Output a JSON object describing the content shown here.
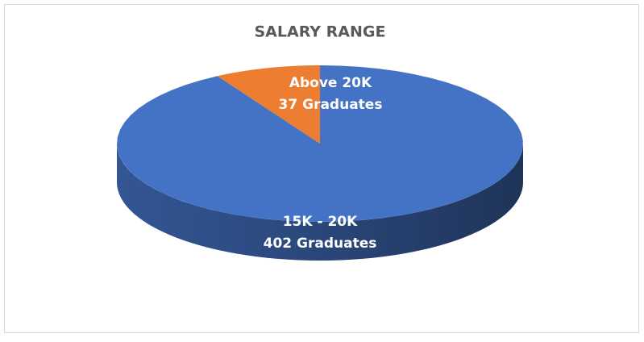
{
  "chart_data": {
    "type": "pie",
    "title": "SALARY RANGE",
    "categories": [
      "15K - 20K",
      "Above 20K"
    ],
    "values": [
      402,
      37
    ],
    "value_labels": [
      "402 Graduates",
      "37 Graduates"
    ],
    "colors": [
      "#4472c4",
      "#ed7d31"
    ]
  }
}
